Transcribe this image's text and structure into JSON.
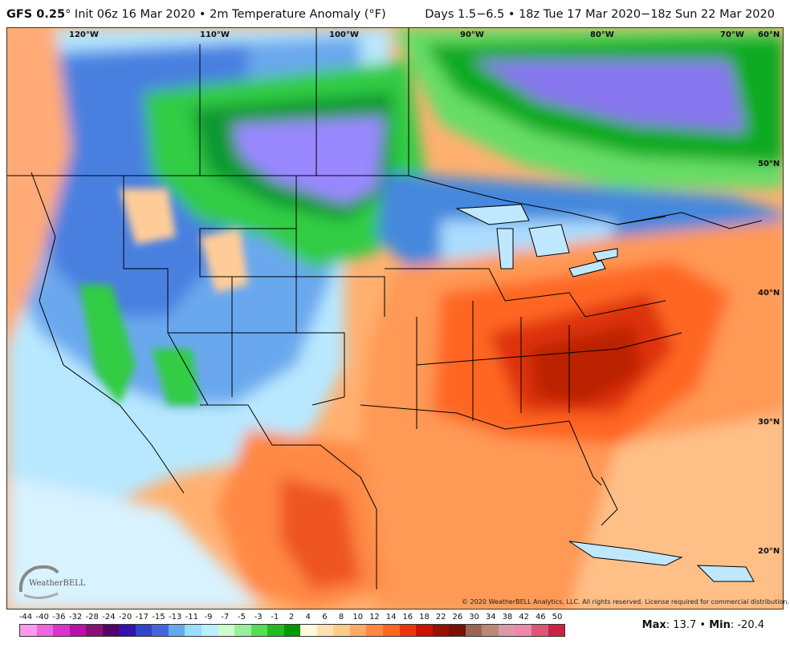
{
  "header": {
    "model": "GFS 0.25",
    "init": "° Init 06z 16 Mar 2020 • 2m Temperature Anomaly (°F)",
    "valid": "Days 1.5−6.5 • 18z Tue 17 Mar 2020−18z Sun 22 Mar 2020"
  },
  "longitude_labels": [
    "120°W",
    "110°W",
    "100°W",
    "90°W",
    "80°W",
    "70°W",
    "60°N"
  ],
  "latitude_labels": [
    "50°N",
    "40°N",
    "30°N",
    "20°N"
  ],
  "copyright": "© 2020 WeatherBELL Analytics, LLC. All rights reserved. License required for commercial distribution.",
  "logo_text": "WeatherBELL",
  "legend": {
    "ticks": [
      "-44",
      "-40",
      "-36",
      "-32",
      "-28",
      "-24",
      "-20",
      "-17",
      "-15",
      "-13",
      "-11",
      "-9",
      "-7",
      "-5",
      "-3",
      "-1",
      "2",
      "4",
      "6",
      "8",
      "10",
      "12",
      "14",
      "16",
      "18",
      "22",
      "26",
      "30",
      "34",
      "38",
      "42",
      "46",
      "50"
    ],
    "colors": [
      "#ff99ee",
      "#ee66dd",
      "#dd33cc",
      "#bb11aa",
      "#881177",
      "#550066",
      "#3311aa",
      "#3344cc",
      "#4466dd",
      "#66aaee",
      "#99ddff",
      "#bbeeff",
      "#ccffcc",
      "#99ee99",
      "#55dd55",
      "#22bb22",
      "#009900",
      "#fff8dd",
      "#ffe0b0",
      "#ffcc88",
      "#ffaa66",
      "#ff8844",
      "#ff6622",
      "#ee3311",
      "#cc1100",
      "#991100",
      "#771100",
      "#996655",
      "#bb8877",
      "#dd99aa",
      "#ee88aa",
      "#dd5577",
      "#cc2244"
    ]
  },
  "maxmin": {
    "max_label": "Max",
    "max": ": 13.7",
    "min_label": "Min",
    "min": ": -20.4",
    "sep": " • "
  }
}
